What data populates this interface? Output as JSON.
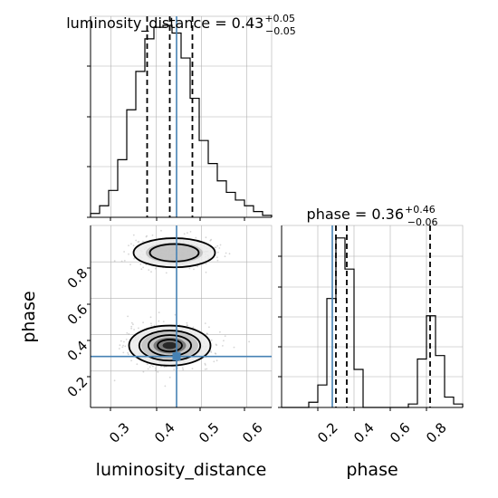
{
  "chart_data": [
    {
      "id": "lum_hist",
      "type": "histogram",
      "title_main": "luminosity_distance = 0.43",
      "title_plus": "+0.05",
      "title_minus": "−0.05",
      "xlim": [
        0.255,
        0.655
      ],
      "grid": true,
      "bins": [
        0.255,
        0.275,
        0.295,
        0.315,
        0.335,
        0.355,
        0.375,
        0.395,
        0.415,
        0.435,
        0.455,
        0.475,
        0.495,
        0.515,
        0.535,
        0.555,
        0.575,
        0.595,
        0.615,
        0.635,
        0.655
      ],
      "counts": [
        0.02,
        0.06,
        0.14,
        0.3,
        0.56,
        0.76,
        0.93,
        0.99,
        1.0,
        0.96,
        0.83,
        0.62,
        0.4,
        0.28,
        0.19,
        0.13,
        0.09,
        0.06,
        0.03,
        0.01
      ],
      "quantiles": [
        0.38,
        0.43,
        0.48
      ],
      "truth": 0.445
    },
    {
      "id": "phase_hist",
      "type": "histogram",
      "title_main": "phase = 0.36",
      "title_plus": "+0.46",
      "title_minus": "−0.06",
      "xlim": [
        0.0,
        1.0
      ],
      "xticks": [
        "0.2",
        "0.4",
        "0.6",
        "0.8"
      ],
      "xlabel": "phase",
      "grid": true,
      "bins": [
        0.0,
        0.05,
        0.1,
        0.15,
        0.2,
        0.25,
        0.3,
        0.35,
        0.4,
        0.45,
        0.5,
        0.55,
        0.6,
        0.65,
        0.7,
        0.75,
        0.8,
        0.85,
        0.9,
        0.95,
        1.0
      ],
      "counts": [
        0.0,
        0.0,
        0.0,
        0.03,
        0.13,
        0.63,
        0.98,
        0.8,
        0.22,
        0.0,
        0.0,
        0.0,
        0.0,
        0.0,
        0.02,
        0.28,
        0.53,
        0.3,
        0.06,
        0.02
      ],
      "quantiles": [
        0.3,
        0.36,
        0.82
      ],
      "truth": 0.28
    },
    {
      "id": "joint",
      "type": "scatter",
      "xlim": [
        0.255,
        0.655
      ],
      "ylim": [
        0.0,
        1.0
      ],
      "xticks": [
        "0.3",
        "0.4",
        "0.5",
        "0.6"
      ],
      "yticks": [
        "0.2",
        "0.4",
        "0.6",
        "0.8"
      ],
      "xlabel": "luminosity_distance",
      "ylabel": "phase",
      "grid": true,
      "clusters": [
        {
          "cx": 0.43,
          "cy": 0.34,
          "sx": 0.045,
          "sy": 0.055
        },
        {
          "cx": 0.44,
          "cy": 0.85,
          "sx": 0.045,
          "sy": 0.04
        }
      ],
      "truth": {
        "x": 0.445,
        "y": 0.28
      },
      "colors": {
        "truth": "#4682b4",
        "line": "#000000",
        "grid": "#b0b0b0"
      }
    }
  ]
}
